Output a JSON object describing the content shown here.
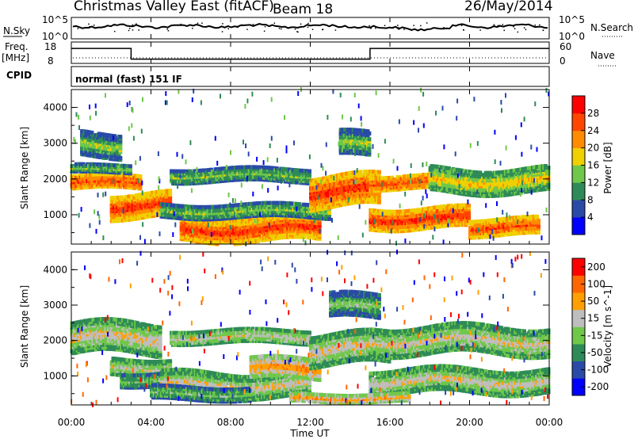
{
  "header": {
    "radar": "Christmas Valley East (fitACF)",
    "beam": "Beam 18",
    "date": "26/May/2014"
  },
  "noise_panel": {
    "left_label": "N.Sky",
    "right_label": "N.Search",
    "left_ticks": [
      "10^5",
      "10^0"
    ],
    "right_ticks": [
      "10^5",
      "10^0"
    ]
  },
  "freq_panel": {
    "left_label": "Freq.",
    "left_unit": "[MHz]",
    "right_label": "Nave",
    "left_ticks": [
      "18",
      "8"
    ],
    "right_ticks": [
      "60",
      "0"
    ]
  },
  "cpid_panel": {
    "label": "CPID",
    "mode": "normal (fast) 151 IF"
  },
  "x_axis": {
    "label": "Time UT",
    "ticks": [
      "00:00",
      "04:00",
      "08:00",
      "12:00",
      "16:00",
      "20:00",
      "00:00"
    ]
  },
  "power_panel": {
    "ylabel": "Slant Range [km]",
    "yticks": [
      "1000",
      "2000",
      "3000",
      "4000"
    ],
    "colorbar_label": "Power [dB]",
    "colorbar_ticks": [
      "4",
      "8",
      "12",
      "16",
      "20",
      "24",
      "28"
    ],
    "colors": [
      "#0000ff",
      "#2a4aa8",
      "#2e8b57",
      "#6fc84a",
      "#f0d000",
      "#ff8c00",
      "#ff4500",
      "#ff0000"
    ]
  },
  "velocity_panel": {
    "ylabel": "Slant Range [km]",
    "yticks": [
      "1000",
      "2000",
      "3000",
      "4000"
    ],
    "colorbar_label": "Velocity [m s^-1]",
    "colorbar_ticks": [
      "200",
      "100",
      "50",
      "15",
      "-15",
      "-50",
      "-100",
      "-200"
    ],
    "colors": [
      "#0000ff",
      "#2a4aa8",
      "#2e8b57",
      "#6fc84a",
      "#bebebe",
      "#ffa000",
      "#ff6600",
      "#ff0000"
    ]
  },
  "chart_data": {
    "type": "heatmap",
    "x_range_hours": [
      0,
      24
    ],
    "y_range_km": [
      180,
      4500
    ],
    "freq_steps_mhz": [
      {
        "start_hr": 0,
        "end_hr": 3,
        "value": 15
      },
      {
        "start_hr": 3,
        "end_hr": 15,
        "value": 10
      },
      {
        "start_hr": 15,
        "end_hr": 24,
        "value": 15
      }
    ],
    "power_bands": [
      {
        "t0": 0,
        "t1": 3.5,
        "r0": 1700,
        "r1": 2100,
        "level": 6
      },
      {
        "t0": 0,
        "t1": 3.0,
        "r0": 2150,
        "r1": 2400,
        "level": 3
      },
      {
        "t0": 0.5,
        "t1": 2.5,
        "r0": 2600,
        "r1": 3300,
        "level": 3
      },
      {
        "t0": 2.0,
        "t1": 5.0,
        "r0": 900,
        "r1": 1600,
        "level": 6
      },
      {
        "t0": 5.5,
        "t1": 12.5,
        "r0": 250,
        "r1": 950,
        "level": 6
      },
      {
        "t0": 4.5,
        "t1": 13.0,
        "r0": 900,
        "r1": 1300,
        "level": 3
      },
      {
        "t0": 5.0,
        "t1": 12.0,
        "r0": 1900,
        "r1": 2300,
        "level": 3
      },
      {
        "t0": 12.0,
        "t1": 15.5,
        "r0": 1200,
        "r1": 2100,
        "level": 6
      },
      {
        "t0": 13.5,
        "t1": 15.0,
        "r0": 2600,
        "r1": 3300,
        "level": 3
      },
      {
        "t0": 15.0,
        "t1": 20.0,
        "r0": 600,
        "r1": 1200,
        "level": 6
      },
      {
        "t0": 15.0,
        "t1": 18.0,
        "r0": 1700,
        "r1": 2100,
        "level": 6
      },
      {
        "t0": 18.0,
        "t1": 24.0,
        "r0": 1600,
        "r1": 2300,
        "level": 4
      },
      {
        "t0": 20.0,
        "t1": 23.5,
        "r0": 400,
        "r1": 900,
        "level": 6
      }
    ],
    "velocity_bands": [
      {
        "t0": 0,
        "t1": 4.5,
        "r0": 1600,
        "r1": 2500,
        "level": 4
      },
      {
        "t0": 2.0,
        "t1": 5.0,
        "r0": 1000,
        "r1": 1500,
        "level": 4
      },
      {
        "t0": 2.5,
        "t1": 5.0,
        "r0": 700,
        "r1": 1100,
        "level": 3
      },
      {
        "t0": 4.5,
        "t1": 12.0,
        "r0": 400,
        "r1": 1100,
        "level": 4
      },
      {
        "t0": 4.0,
        "t1": 9.0,
        "r0": 300,
        "r1": 700,
        "level": 3
      },
      {
        "t0": 9.0,
        "t1": 12.5,
        "r0": 900,
        "r1": 1500,
        "level": 5
      },
      {
        "t0": 5.0,
        "t1": 12.0,
        "r0": 1900,
        "r1": 2300,
        "level": 4
      },
      {
        "t0": 12.0,
        "t1": 16.0,
        "r0": 1300,
        "r1": 2200,
        "level": 4
      },
      {
        "t0": 13.0,
        "t1": 15.5,
        "r0": 2600,
        "r1": 3300,
        "level": 3
      },
      {
        "t0": 15.0,
        "t1": 24.0,
        "r0": 1600,
        "r1": 2400,
        "level": 4
      },
      {
        "t0": 15.0,
        "t1": 24.0,
        "r0": 500,
        "r1": 1200,
        "level": 4
      },
      {
        "t0": 11.0,
        "t1": 17.0,
        "r0": 250,
        "r1": 500,
        "level": 5
      }
    ]
  }
}
